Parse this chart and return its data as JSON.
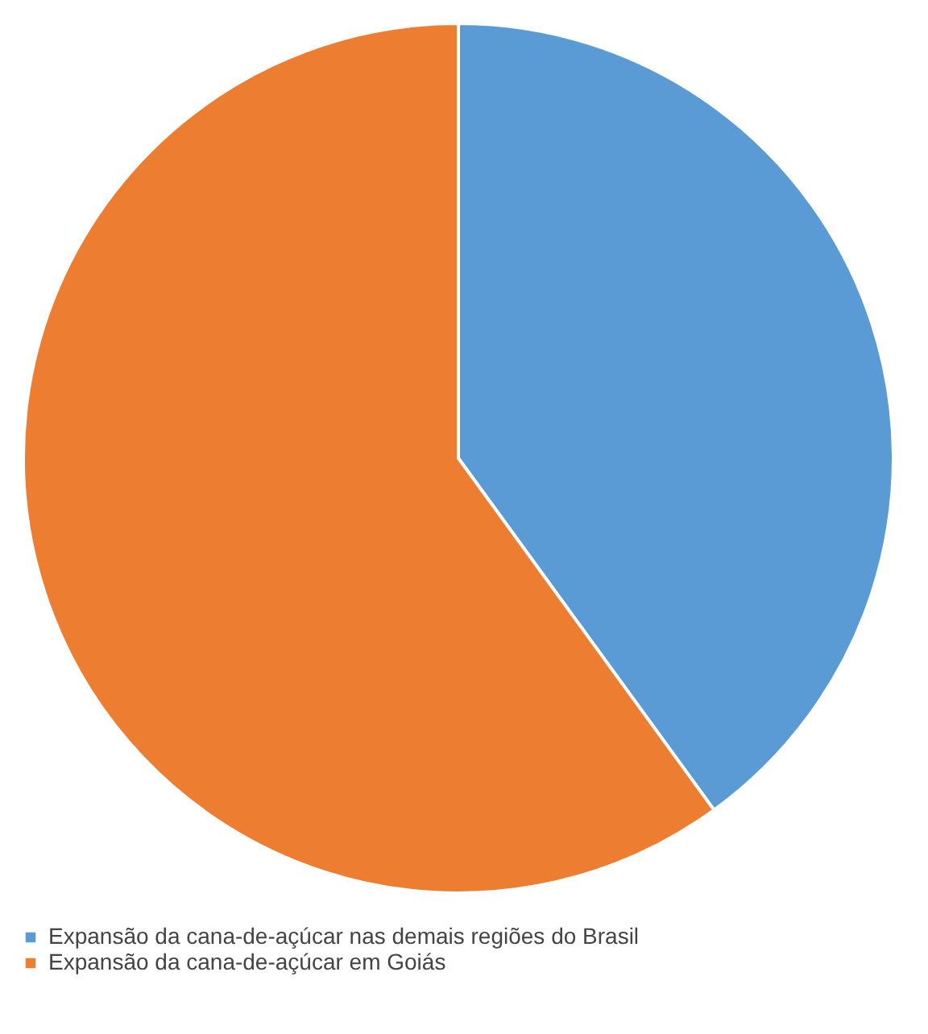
{
  "chart_data": {
    "type": "pie",
    "categories": [
      "Expansão da cana-de-açúcar nas demais regiões do Brasil",
      "Expansão da cana-de-açúcar em Goiás"
    ],
    "values": [
      40,
      60
    ],
    "colors": [
      "#5b9bd5",
      "#ed7d31"
    ],
    "legend": "bottom"
  }
}
